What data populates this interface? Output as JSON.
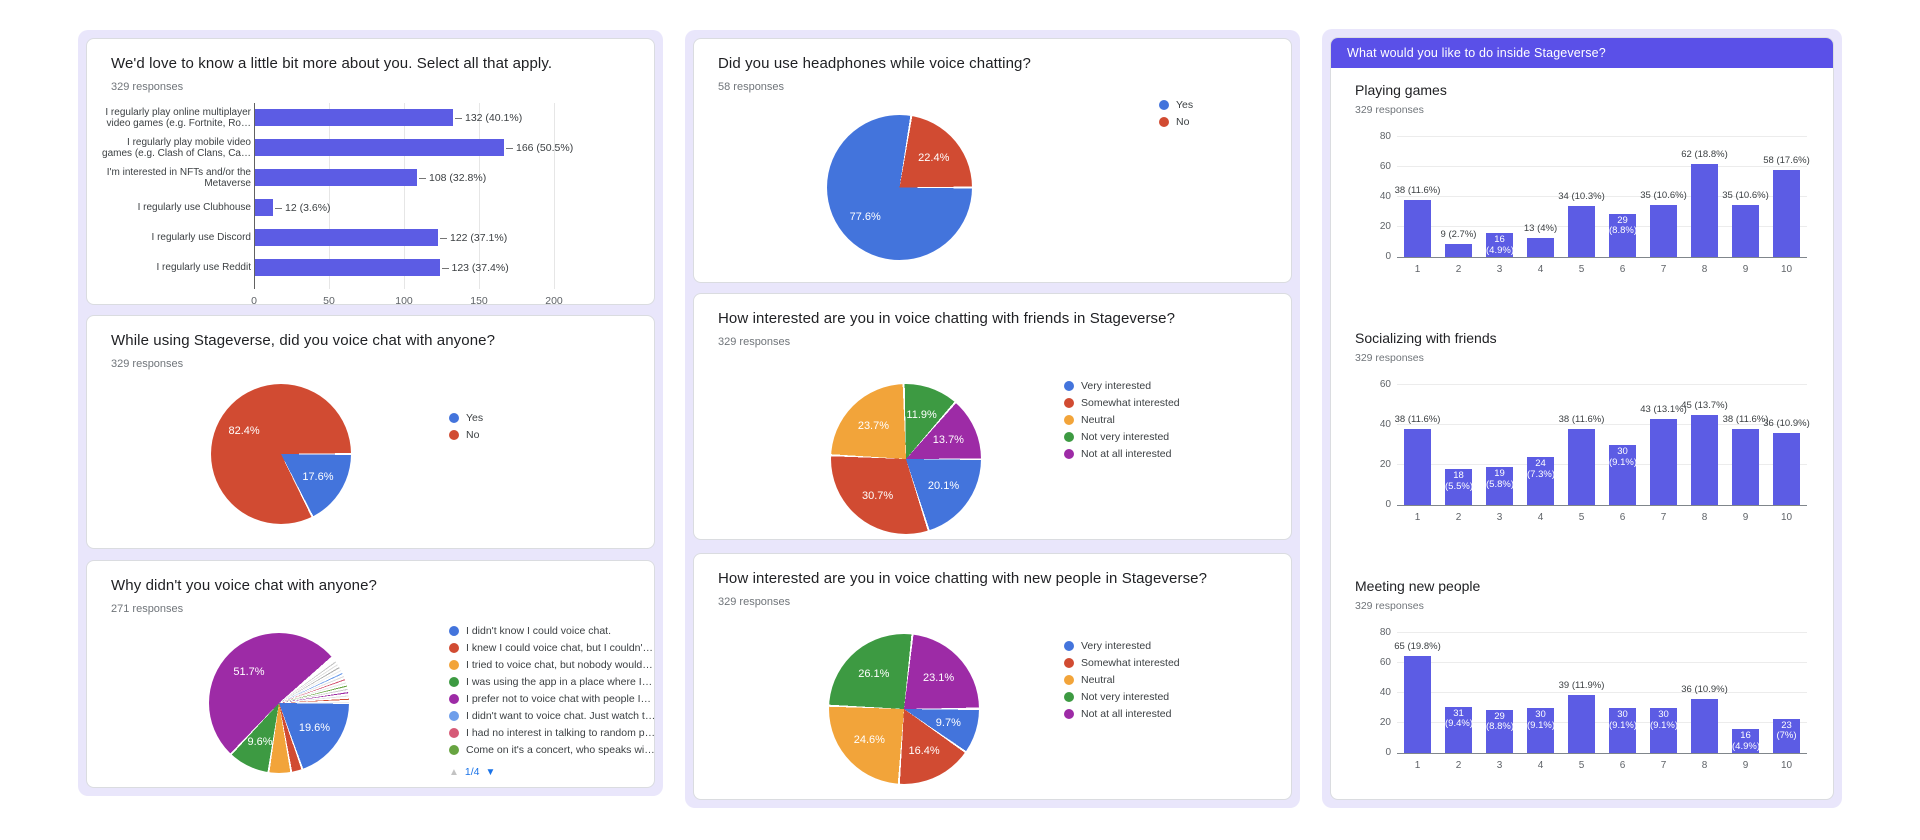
{
  "palette": {
    "blue": "#4374dc",
    "red": "#d14b32",
    "orange": "#f2a43a",
    "green": "#3d9a42",
    "purple": "#9d2ba6",
    "lightblue": "#6e9eeb",
    "pink": "#d65a77",
    "green2": "#67a441",
    "bar": "#5c5ce4",
    "header": "#5a50e8",
    "panel": "#e9e6fb",
    "card_border": "#dadce0",
    "title_text": "#202124",
    "muted_text": "#70757a",
    "pager_active": "#1a73e8"
  },
  "chart_data": [
    {
      "type": "bar",
      "orientation": "horizontal",
      "title": "We'd love to know a little bit more about you. Select all that apply.",
      "responses": "329 responses",
      "categories": [
        [
          "I regularly play online multiplayer",
          "video games (e.g. Fortnite, Ro…"
        ],
        [
          "I regularly play mobile video",
          "games (e.g. Clash of Clans, Ca…"
        ],
        [
          "I'm interested in NFTs and/or the",
          "Metaverse"
        ],
        [
          "I regularly use Clubhouse"
        ],
        [
          "I regularly use Discord"
        ],
        [
          "I regularly use Reddit"
        ]
      ],
      "values": [
        132,
        166,
        108,
        12,
        122,
        123
      ],
      "labels": [
        "132 (40.1%)",
        "166 (50.5%)",
        "108 (32.8%)",
        "12 (3.6%)",
        "122 (37.1%)",
        "123 (37.4%)"
      ],
      "xticks": [
        0,
        50,
        100,
        150,
        200
      ],
      "xmax": 200,
      "grid": true,
      "bar_color": "bar"
    },
    {
      "type": "pie",
      "title": "While using Stageverse, did you voice chat with anyone?",
      "responses": "329 responses",
      "legend_position": "right",
      "slices": [
        {
          "name": "Yes",
          "pct": 17.6,
          "color": "blue",
          "label": "17.6%"
        },
        {
          "name": "No",
          "pct": 82.4,
          "color": "red",
          "label": "82.4%"
        }
      ]
    },
    {
      "type": "pie",
      "title": "Why didn't you voice chat with anyone?",
      "responses": "271 responses",
      "legend_position": "right",
      "slices": [
        {
          "name": "I didn't know I could voice chat.",
          "pct": 19.6,
          "color": "blue",
          "label": "19.6%"
        },
        {
          "name": "I knew I could voice chat, but I couldn'…",
          "pct": 2.6,
          "color": "red"
        },
        {
          "name": "I tried to voice chat, but nobody would…",
          "pct": 5.2,
          "color": "orange"
        },
        {
          "name": "I was using the app in a place where I…",
          "pct": 9.6,
          "color": "green",
          "label": "9.6%"
        },
        {
          "name": "I prefer not to voice chat with people I…",
          "pct": 51.7,
          "color": "purple",
          "label": "51.7%"
        },
        {
          "name": "I didn't want to voice chat. Just watch t…",
          "pct": 0.4,
          "color": "lightblue"
        },
        {
          "name": "I had no interest in talking to random p…",
          "pct": 0.4,
          "color": "pink"
        },
        {
          "name": "Come on it's a concert, who speaks wi…",
          "pct": 0.4,
          "color": "green2"
        }
      ],
      "other_pct": 10.1,
      "pagination": {
        "current": "1/4"
      }
    },
    {
      "type": "pie",
      "title": "Did you use headphones while voice chatting?",
      "responses": "58 responses",
      "legend_position": "right",
      "slices": [
        {
          "name": "Yes",
          "pct": 77.6,
          "color": "blue",
          "label": "77.6%"
        },
        {
          "name": "No",
          "pct": 22.4,
          "color": "red",
          "label": "22.4%"
        }
      ]
    },
    {
      "type": "pie",
      "title": "How interested are you in voice chatting with friends in Stageverse?",
      "responses": "329 responses",
      "legend_position": "right",
      "slices": [
        {
          "name": "Very interested",
          "pct": 20.1,
          "color": "blue",
          "label": "20.1%"
        },
        {
          "name": "Somewhat interested",
          "pct": 30.7,
          "color": "red",
          "label": "30.7%"
        },
        {
          "name": "Neutral",
          "pct": 23.7,
          "color": "orange",
          "label": "23.7%"
        },
        {
          "name": "Not very interested",
          "pct": 11.9,
          "color": "green",
          "label": "11.9%"
        },
        {
          "name": "Not at all interested",
          "pct": 13.7,
          "color": "purple",
          "label": "13.7%"
        }
      ]
    },
    {
      "type": "pie",
      "title": "How interested are you in voice chatting with new people in Stageverse?",
      "responses": "329 responses",
      "legend_position": "right",
      "slices": [
        {
          "name": "Very interested",
          "pct": 9.7,
          "color": "blue",
          "label": "9.7%"
        },
        {
          "name": "Somewhat interested",
          "pct": 16.4,
          "color": "red",
          "label": "16.4%"
        },
        {
          "name": "Neutral",
          "pct": 24.6,
          "color": "orange",
          "label": "24.6%"
        },
        {
          "name": "Not very interested",
          "pct": 26.1,
          "color": "green",
          "label": "26.1%"
        },
        {
          "name": "Not at all interested",
          "pct": 23.1,
          "color": "purple",
          "label": "23.1%"
        }
      ]
    },
    {
      "type": "bar-group",
      "orientation": "vertical",
      "header": "What would you like to do inside Stageverse?",
      "sections": [
        {
          "title": "Playing games",
          "responses": "329 responses",
          "x": [
            1,
            2,
            3,
            4,
            5,
            6,
            7,
            8,
            9,
            10
          ],
          "values": [
            38,
            9,
            16,
            13,
            34,
            29,
            35,
            62,
            35,
            58
          ],
          "labels": [
            "38 (11.6%)",
            "9 (2.7%)",
            "16 (4.9%)",
            "13 (4%)",
            "34 (10.3%)",
            "29 (8.8%)",
            "35 (10.6%)",
            "62 (18.8%)",
            "35 (10.6%)",
            "58 (17.6%)"
          ],
          "inside": [
            false,
            false,
            true,
            false,
            false,
            true,
            false,
            false,
            false,
            false
          ],
          "yticks": [
            0,
            20,
            40,
            60,
            80
          ],
          "ymax": 80,
          "grid": true
        },
        {
          "title": "Socializing with friends",
          "responses": "329 responses",
          "x": [
            1,
            2,
            3,
            4,
            5,
            6,
            7,
            8,
            9,
            10
          ],
          "values": [
            38,
            18,
            19,
            24,
            38,
            30,
            43,
            45,
            38,
            36
          ],
          "labels": [
            "38 (11.6%)",
            "18 (5.5%)",
            "19 (5.8%)",
            "24 (7.3%)",
            "38 (11.6%)",
            "30 (9.1%)",
            "43 (13.1%)",
            "45 (13.7%)",
            "38 (11.6%)",
            "36 (10.9%)"
          ],
          "inside": [
            false,
            true,
            true,
            true,
            false,
            true,
            false,
            false,
            false,
            false
          ],
          "yticks": [
            0,
            20,
            40,
            60
          ],
          "ymax": 60,
          "grid": true
        },
        {
          "title": "Meeting new people",
          "responses": "329 responses",
          "x": [
            1,
            2,
            3,
            4,
            5,
            6,
            7,
            8,
            9,
            10
          ],
          "values": [
            65,
            31,
            29,
            30,
            39,
            30,
            30,
            36,
            16,
            23
          ],
          "labels": [
            "65 (19.8%)",
            "31 (9.4%)",
            "29 (8.8%)",
            "30 (9.1%)",
            "39 (11.9%)",
            "30 (9.1%)",
            "30 (9.1%)",
            "36 (10.9%)",
            "16 (4.9%)",
            "23 (7%)"
          ],
          "inside": [
            false,
            true,
            true,
            true,
            false,
            true,
            true,
            false,
            true,
            true
          ],
          "yticks": [
            0,
            20,
            40,
            60,
            80
          ],
          "ymax": 80,
          "grid": true
        }
      ]
    }
  ]
}
